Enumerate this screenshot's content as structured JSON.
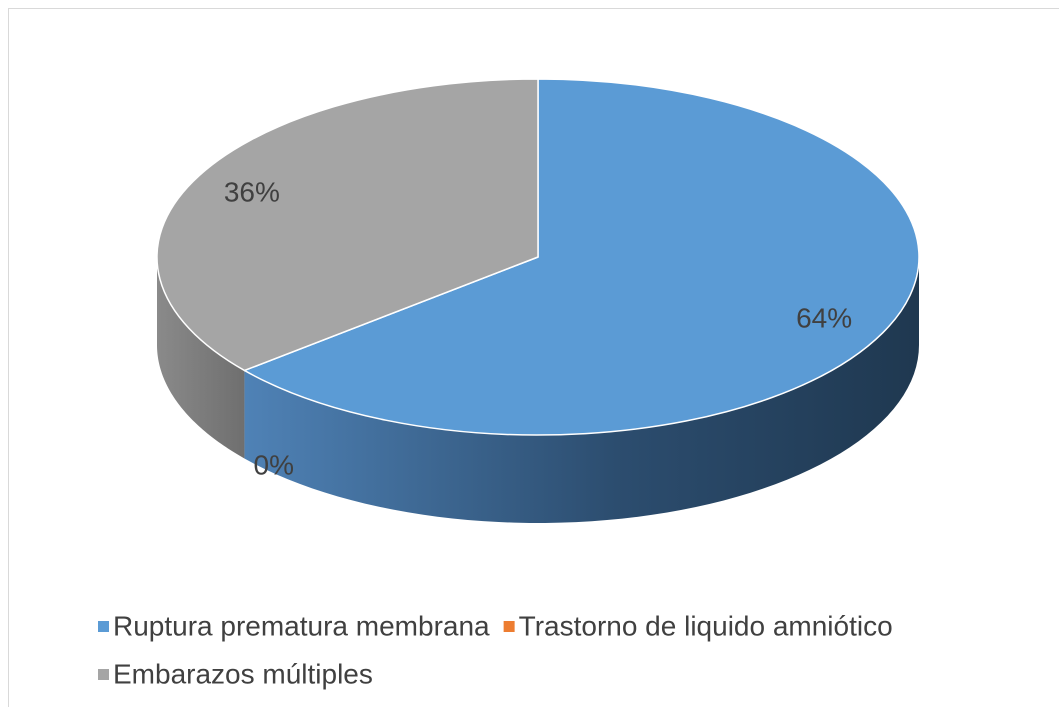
{
  "chart_data": {
    "type": "pie3d",
    "categories": [
      "Ruptura prematura membrana",
      "Trastorno de liquido amniótico",
      "Embarazos múltiples"
    ],
    "values": [
      64,
      0,
      36
    ],
    "value_labels": [
      "64%",
      "0%",
      "36%"
    ],
    "colors": [
      "#5b9bd5",
      "#ed7d31",
      "#a5a5a5"
    ],
    "legend": "bottom"
  }
}
